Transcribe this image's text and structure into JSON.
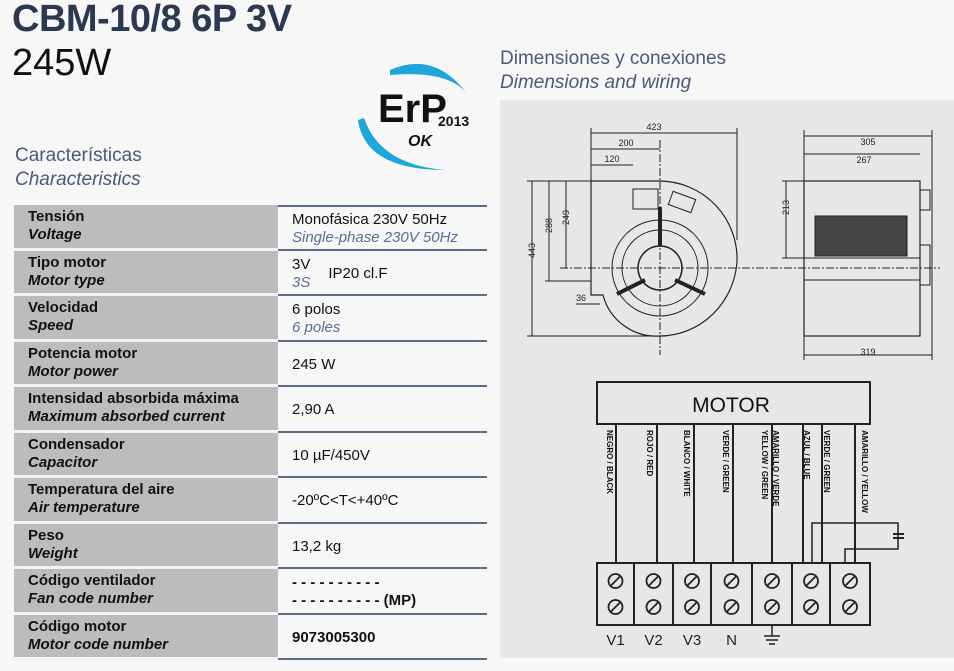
{
  "header": {
    "model": "CBM-10/8 6P 3V",
    "power": "245W"
  },
  "logo": {
    "text": "ErP",
    "year": "2013",
    "status": "OK",
    "color": "#1ea6da"
  },
  "characteristics": {
    "title_es": "Características",
    "title_en": "Characteristics"
  },
  "dimensions": {
    "title_es": "Dimensiones y conexiones",
    "title_en": "Dimensions and wiring",
    "values": {
      "w423": "423",
      "w200": "200",
      "w120": "120",
      "h443": "443",
      "h288": "288",
      "h249": "249",
      "d36": "36",
      "w305": "305",
      "w267": "267",
      "h213": "213",
      "w319": "319"
    }
  },
  "specs": [
    {
      "es": "Tensión",
      "en": "Voltage",
      "value": "Monofásica 230V 50Hz",
      "value_en": "Single-phase 230V 50Hz"
    },
    {
      "es": "Tipo motor",
      "en": "Motor type",
      "value": "3V",
      "value_en": "3S",
      "extra": "IP20  cl.F"
    },
    {
      "es": "Velocidad",
      "en": "Speed",
      "value": "6 polos",
      "value_en": "6 poles"
    },
    {
      "es": "Potencia motor",
      "en": "Motor power",
      "value": "245 W"
    },
    {
      "es": "Intensidad absorbida máxima",
      "en": "Maximum absorbed current",
      "value": "2,90 A"
    },
    {
      "es": "Condensador",
      "en": "Capacitor",
      "value": "10 µF/450V"
    },
    {
      "es": "Temperatura del aire",
      "en": "Air temperature",
      "value": "-20ºC<T<+40ºC"
    },
    {
      "es": "Peso",
      "en": "Weight",
      "value": "13,2 kg"
    },
    {
      "es": "Código ventilador",
      "en": "Fan code number",
      "value": "- - - - - - - - - -",
      "value2": "- - - - - - - - - -  (MP)"
    },
    {
      "es": "Código motor",
      "en": "Motor code number",
      "value": "9073005300"
    }
  ],
  "wiring": {
    "motor_label": "MOTOR",
    "wires": [
      "NEGRO / BLACK",
      "ROJO / RED",
      "BLANCO / WHITE",
      "VERDE / GREEN",
      "YELLOW / GREEN",
      "AMARILLO / VERDE",
      "AZUL / BLUE",
      "VERDE / GREEN",
      "AMARILLO / YELLOW"
    ],
    "terminals": [
      "V1",
      "V2",
      "V3",
      "N",
      "ground",
      "",
      ""
    ]
  }
}
